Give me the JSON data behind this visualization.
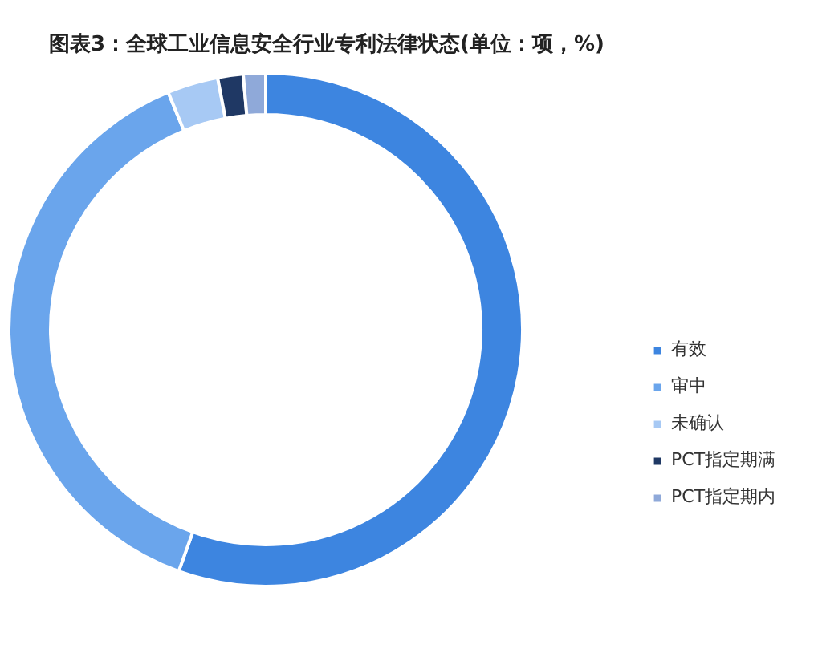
{
  "chart_data": {
    "type": "donut",
    "title": "图表3：全球工业信息安全行业专利法律状态(单位：项，%)",
    "categories": [
      "有效",
      "审中",
      "未确认",
      "PCT指定期满",
      "PCT指定期内"
    ],
    "values": [
      55.5,
      38.3,
      3.2,
      1.6,
      1.4
    ],
    "colors": [
      "#3d85e0",
      "#6aa5ec",
      "#a7c9f4",
      "#1f3864",
      "#8fa9d9"
    ],
    "legend": "right"
  }
}
